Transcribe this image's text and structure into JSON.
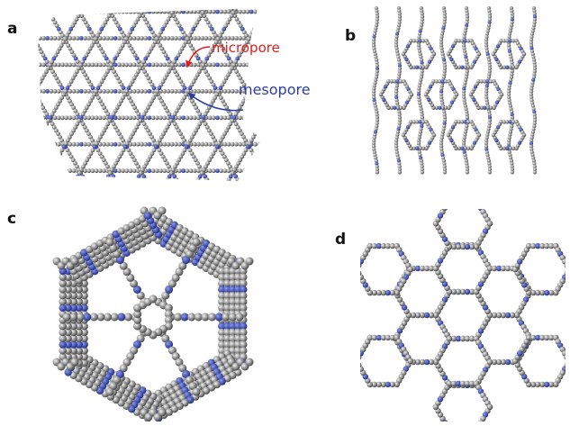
{
  "panels": {
    "a": {
      "letter": "a"
    },
    "b": {
      "letter": "b"
    },
    "c": {
      "letter": "c"
    },
    "d": {
      "letter": "d"
    }
  },
  "annotations": {
    "micropore": {
      "text": "micropore",
      "color": "#e01e1e"
    },
    "mesopore": {
      "text": "mesopore",
      "color": "#2d3f9e"
    }
  },
  "colors": {
    "carbon": "#7c7c7c",
    "carbon_highlight": "#c9c9c9",
    "nitrogen": "#3d4fb8",
    "background": "#ffffff"
  }
}
